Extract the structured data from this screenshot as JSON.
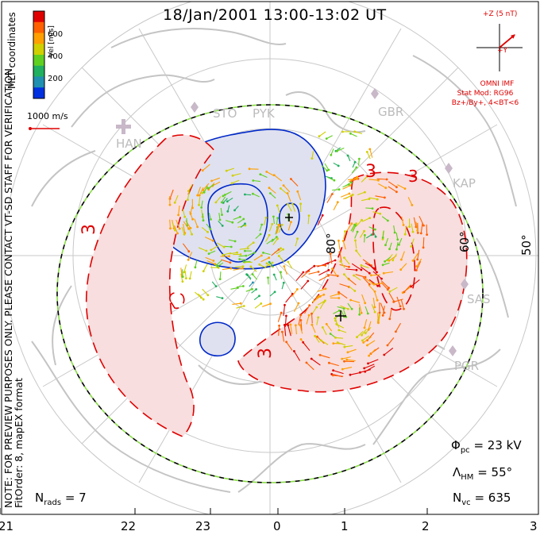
{
  "title": "18/Jan/2001 13:00-13:02 UT",
  "side_notes": {
    "coords": "MLT coordinates",
    "preview_note": "NOTE: FOR PREVIEW PURPOSES ONLY. PLEASE CONTACT VT-SD STAFF FOR VERIFICATION.",
    "fit_order": "FitOrder: 8, mapEX format"
  },
  "velocity_scale": {
    "label": "Vel [m/s]",
    "ticks": [
      "600",
      "400",
      "200"
    ],
    "colors": [
      "#e00000",
      "#ff6000",
      "#ffa000",
      "#d0d000",
      "#60d020",
      "#20b060",
      "#2090b0",
      "#0030e0"
    ]
  },
  "reference_vector": {
    "label": "1000 m/s",
    "color": "#e00000"
  },
  "imf": {
    "axis_z": "+Z (5 nT)",
    "axis_y": "+Y",
    "source": "OMNI IMF",
    "model": "Stat Mod: RG96",
    "condition": "Bz+/By+, 4<BT<6"
  },
  "stations": [
    "STO",
    "PYK",
    "GBR",
    "HAN",
    "KAP",
    "SAS",
    "PGR"
  ],
  "latitude_labels": [
    "80°",
    "60°",
    "50°"
  ],
  "contour_labels": [
    "3",
    "3",
    "3",
    "3"
  ],
  "stats": {
    "phi_pc": "= 23 kV",
    "lambda_hm": "= 55°",
    "n_vc": "= 635",
    "n_rads": "= 7"
  },
  "stat_symbols": {
    "phi": "Φ",
    "phi_sub": "pc",
    "lambda": "Λ",
    "lambda_sub": "HM",
    "n": "N",
    "n_sub_vc": "vc",
    "n_sub_rads": "rads"
  },
  "mlt_ticks": [
    "21",
    "22",
    "23",
    "0",
    "1",
    "2",
    "3"
  ],
  "colors": {
    "positive_cell": "#f8dede",
    "negative_cell": "#dfe1f0",
    "positive_contour": "#e00000",
    "negative_contour": "#0028c8",
    "coastline": "#c4c4c4",
    "hmb_dash_a": "#000000",
    "hmb_dash_b": "#88dd44"
  }
}
